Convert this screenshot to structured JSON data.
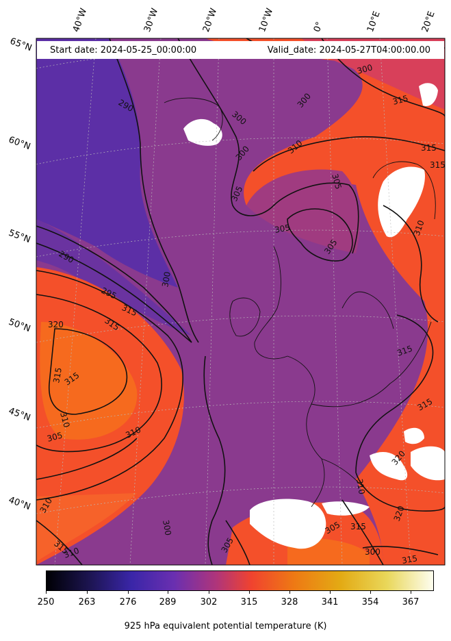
{
  "header": {
    "start_date": "Start date: 2024-05-25_00:00:00",
    "valid_date": "Valid_date: 2024-05-27T04:00:00.00"
  },
  "longitude_labels": [
    "40°W",
    "30°W",
    "20°W",
    "10°W",
    "0°",
    "10°E",
    "20°E"
  ],
  "latitude_labels": [
    "65°N",
    "60°N",
    "55°N",
    "50°N",
    "45°N",
    "40°N"
  ],
  "contour_labels": [
    "290",
    "300",
    "300",
    "305",
    "300",
    "305",
    "310",
    "305",
    "305",
    "300",
    "290",
    "300",
    "295",
    "315",
    "315",
    "320",
    "315",
    "315",
    "310",
    "305",
    "310",
    "310",
    "300",
    "305",
    "310",
    "315",
    "315",
    "315",
    "315",
    "310",
    "315",
    "315",
    "320",
    "320",
    "315",
    "305",
    "300",
    "315",
    "310"
  ],
  "colorbar": {
    "ticks": [
      "250",
      "263",
      "276",
      "289",
      "302",
      "315",
      "328",
      "341",
      "354",
      "367"
    ],
    "label": "925 hPa equivalent potential temperature (K)",
    "colormap": [
      "#000004",
      "#2a1e6a",
      "#4a2ac2",
      "#7b2f9c",
      "#c7356a",
      "#f5452f",
      "#ef7b12",
      "#e3b51a",
      "#ead95c",
      "#fdfdec"
    ]
  },
  "colors": {
    "cold_purple": "#5c2fa6",
    "mid_purple": "#8a3a8e",
    "warm_orange": "#f4502a",
    "hot_orange": "#f66a1e",
    "land_mask": "#ffffff"
  }
}
